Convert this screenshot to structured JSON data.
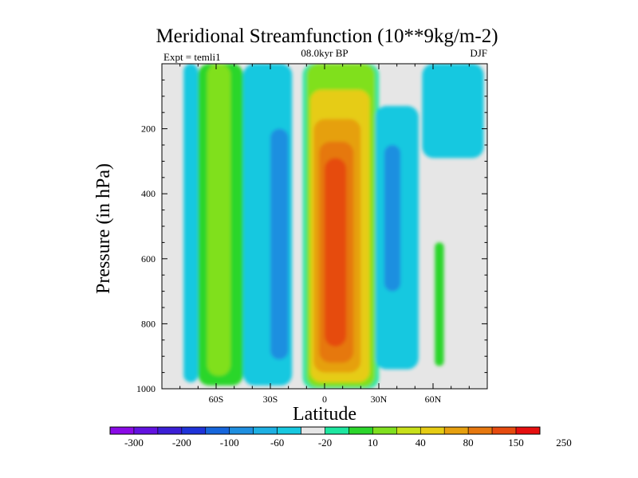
{
  "chart_data": {
    "type": "heatmap",
    "title": "Meridional Streamfunction (10**9kg/m-2)",
    "subtitle_left": "Expt = temli1",
    "subtitle_center": "08.0kyr BP",
    "subtitle_right": "DJF",
    "xlabel": "Latitude",
    "ylabel": "Pressure (in hPa)",
    "xlim": [
      -90,
      90
    ],
    "ylim": [
      0,
      1000
    ],
    "x_ticks": [
      {
        "value": -60,
        "label": "60S"
      },
      {
        "value": -30,
        "label": "30S"
      },
      {
        "value": 0,
        "label": "0"
      },
      {
        "value": 30,
        "label": "30N"
      },
      {
        "value": 60,
        "label": "60N"
      }
    ],
    "y_ticks": [
      {
        "value": 200,
        "label": "200"
      },
      {
        "value": 400,
        "label": "400"
      },
      {
        "value": 600,
        "label": "600"
      },
      {
        "value": 800,
        "label": "800"
      },
      {
        "value": 1000,
        "label": "1000"
      }
    ],
    "colorbar": {
      "colors": [
        "#8a0ae6",
        "#6212e0",
        "#3b1fd6",
        "#1f33d9",
        "#1666dc",
        "#1f8fe0",
        "#1eb0e3",
        "#17c8e0",
        "#e6e6e6",
        "#1ee6a0",
        "#2cd62c",
        "#80e01f",
        "#c8e01a",
        "#e6cc14",
        "#e6a00f",
        "#e6780f",
        "#e64b0f",
        "#e60f0f"
      ],
      "labels": [
        "-300",
        "-200",
        "-100",
        "-60",
        "-20",
        "10",
        "40",
        "80",
        "150",
        "250"
      ]
    },
    "regions": [
      {
        "name": "southern-outer-cell",
        "level": -20,
        "lat": [
          -78,
          -70
        ],
        "p": [
          0,
          980
        ]
      },
      {
        "name": "southern-middle-cell",
        "level": 10,
        "lat": [
          -70,
          -45
        ],
        "p": [
          0,
          990
        ]
      },
      {
        "name": "southern-middle-cell-core",
        "level": 40,
        "lat": [
          -65,
          -52
        ],
        "p": [
          0,
          960
        ]
      },
      {
        "name": "southern-subtropical-cell",
        "level": -20,
        "lat": [
          -45,
          -18
        ],
        "p": [
          0,
          990
        ]
      },
      {
        "name": "southern-subtropical-cell-core",
        "level": -60,
        "lat": [
          -30,
          -20
        ],
        "p": [
          200,
          910
        ]
      },
      {
        "name": "hadley-cell",
        "level": 10,
        "lat": [
          -12,
          30
        ],
        "p": [
          0,
          1000
        ]
      },
      {
        "name": "hadley-cell-40",
        "level": 40,
        "lat": [
          -10,
          28
        ],
        "p": [
          0,
          995
        ]
      },
      {
        "name": "hadley-cell-80",
        "level": 80,
        "lat": [
          -8,
          25
        ],
        "p": [
          80,
          980
        ]
      },
      {
        "name": "hadley-cell-150",
        "level": 150,
        "lat": [
          -6,
          20
        ],
        "p": [
          170,
          950
        ]
      },
      {
        "name": "hadley-cell-250",
        "level": 250,
        "lat": [
          -3,
          16
        ],
        "p": [
          240,
          920
        ]
      },
      {
        "name": "hadley-cell-core",
        "level": 300,
        "lat": [
          0,
          12
        ],
        "p": [
          290,
          870
        ]
      },
      {
        "name": "northern-cell",
        "level": -20,
        "lat": [
          28,
          52
        ],
        "p": [
          130,
          940
        ]
      },
      {
        "name": "northern-cell-core",
        "level": -60,
        "lat": [
          33,
          42
        ],
        "p": [
          250,
          700
        ]
      },
      {
        "name": "northern-polar-cell",
        "level": -20,
        "lat": [
          54,
          88
        ],
        "p": [
          0,
          290
        ]
      },
      {
        "name": "northern-high-cell",
        "level": 10,
        "lat": [
          61,
          66
        ],
        "p": [
          550,
          930
        ]
      }
    ]
  }
}
